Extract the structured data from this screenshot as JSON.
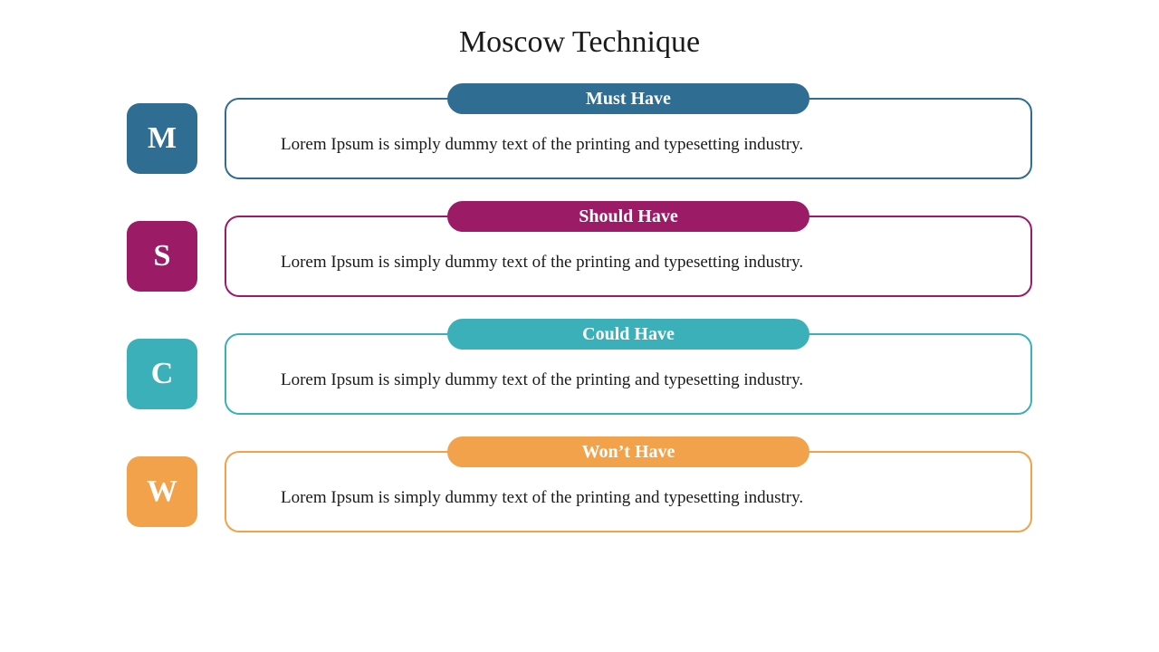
{
  "title": "Moscow Technique",
  "title_fontsize": 34,
  "title_color": "#1a1a1a",
  "background_color": "#ffffff",
  "pill_width": 400,
  "badge_size": 78,
  "badge_radius": 14,
  "card_radius": 16,
  "body_fontsize": 19,
  "pill_fontsize": 20,
  "badge_fontsize": 34,
  "items": [
    {
      "letter": "M",
      "label": "Must Have",
      "body": "Lorem Ipsum is simply dummy text of the printing and typesetting industry.",
      "color": "#2f6d92",
      "border_color": "#2f6d92"
    },
    {
      "letter": "S",
      "label": "Should Have",
      "body": "Lorem Ipsum is simply dummy text of the printing and typesetting industry.",
      "color": "#9c1b66",
      "border_color": "#9c1b66"
    },
    {
      "letter": "C",
      "label": "Could Have",
      "body": "Lorem Ipsum is simply dummy text of the printing and typesetting industry.",
      "color": "#3bb0b8",
      "border_color": "#3bb0b8"
    },
    {
      "letter": "W",
      "label": "Won’t Have",
      "body": "Lorem Ipsum is simply dummy text of the printing and typesetting industry.",
      "color": "#f2a24a",
      "border_color": "#f2a24a"
    }
  ]
}
